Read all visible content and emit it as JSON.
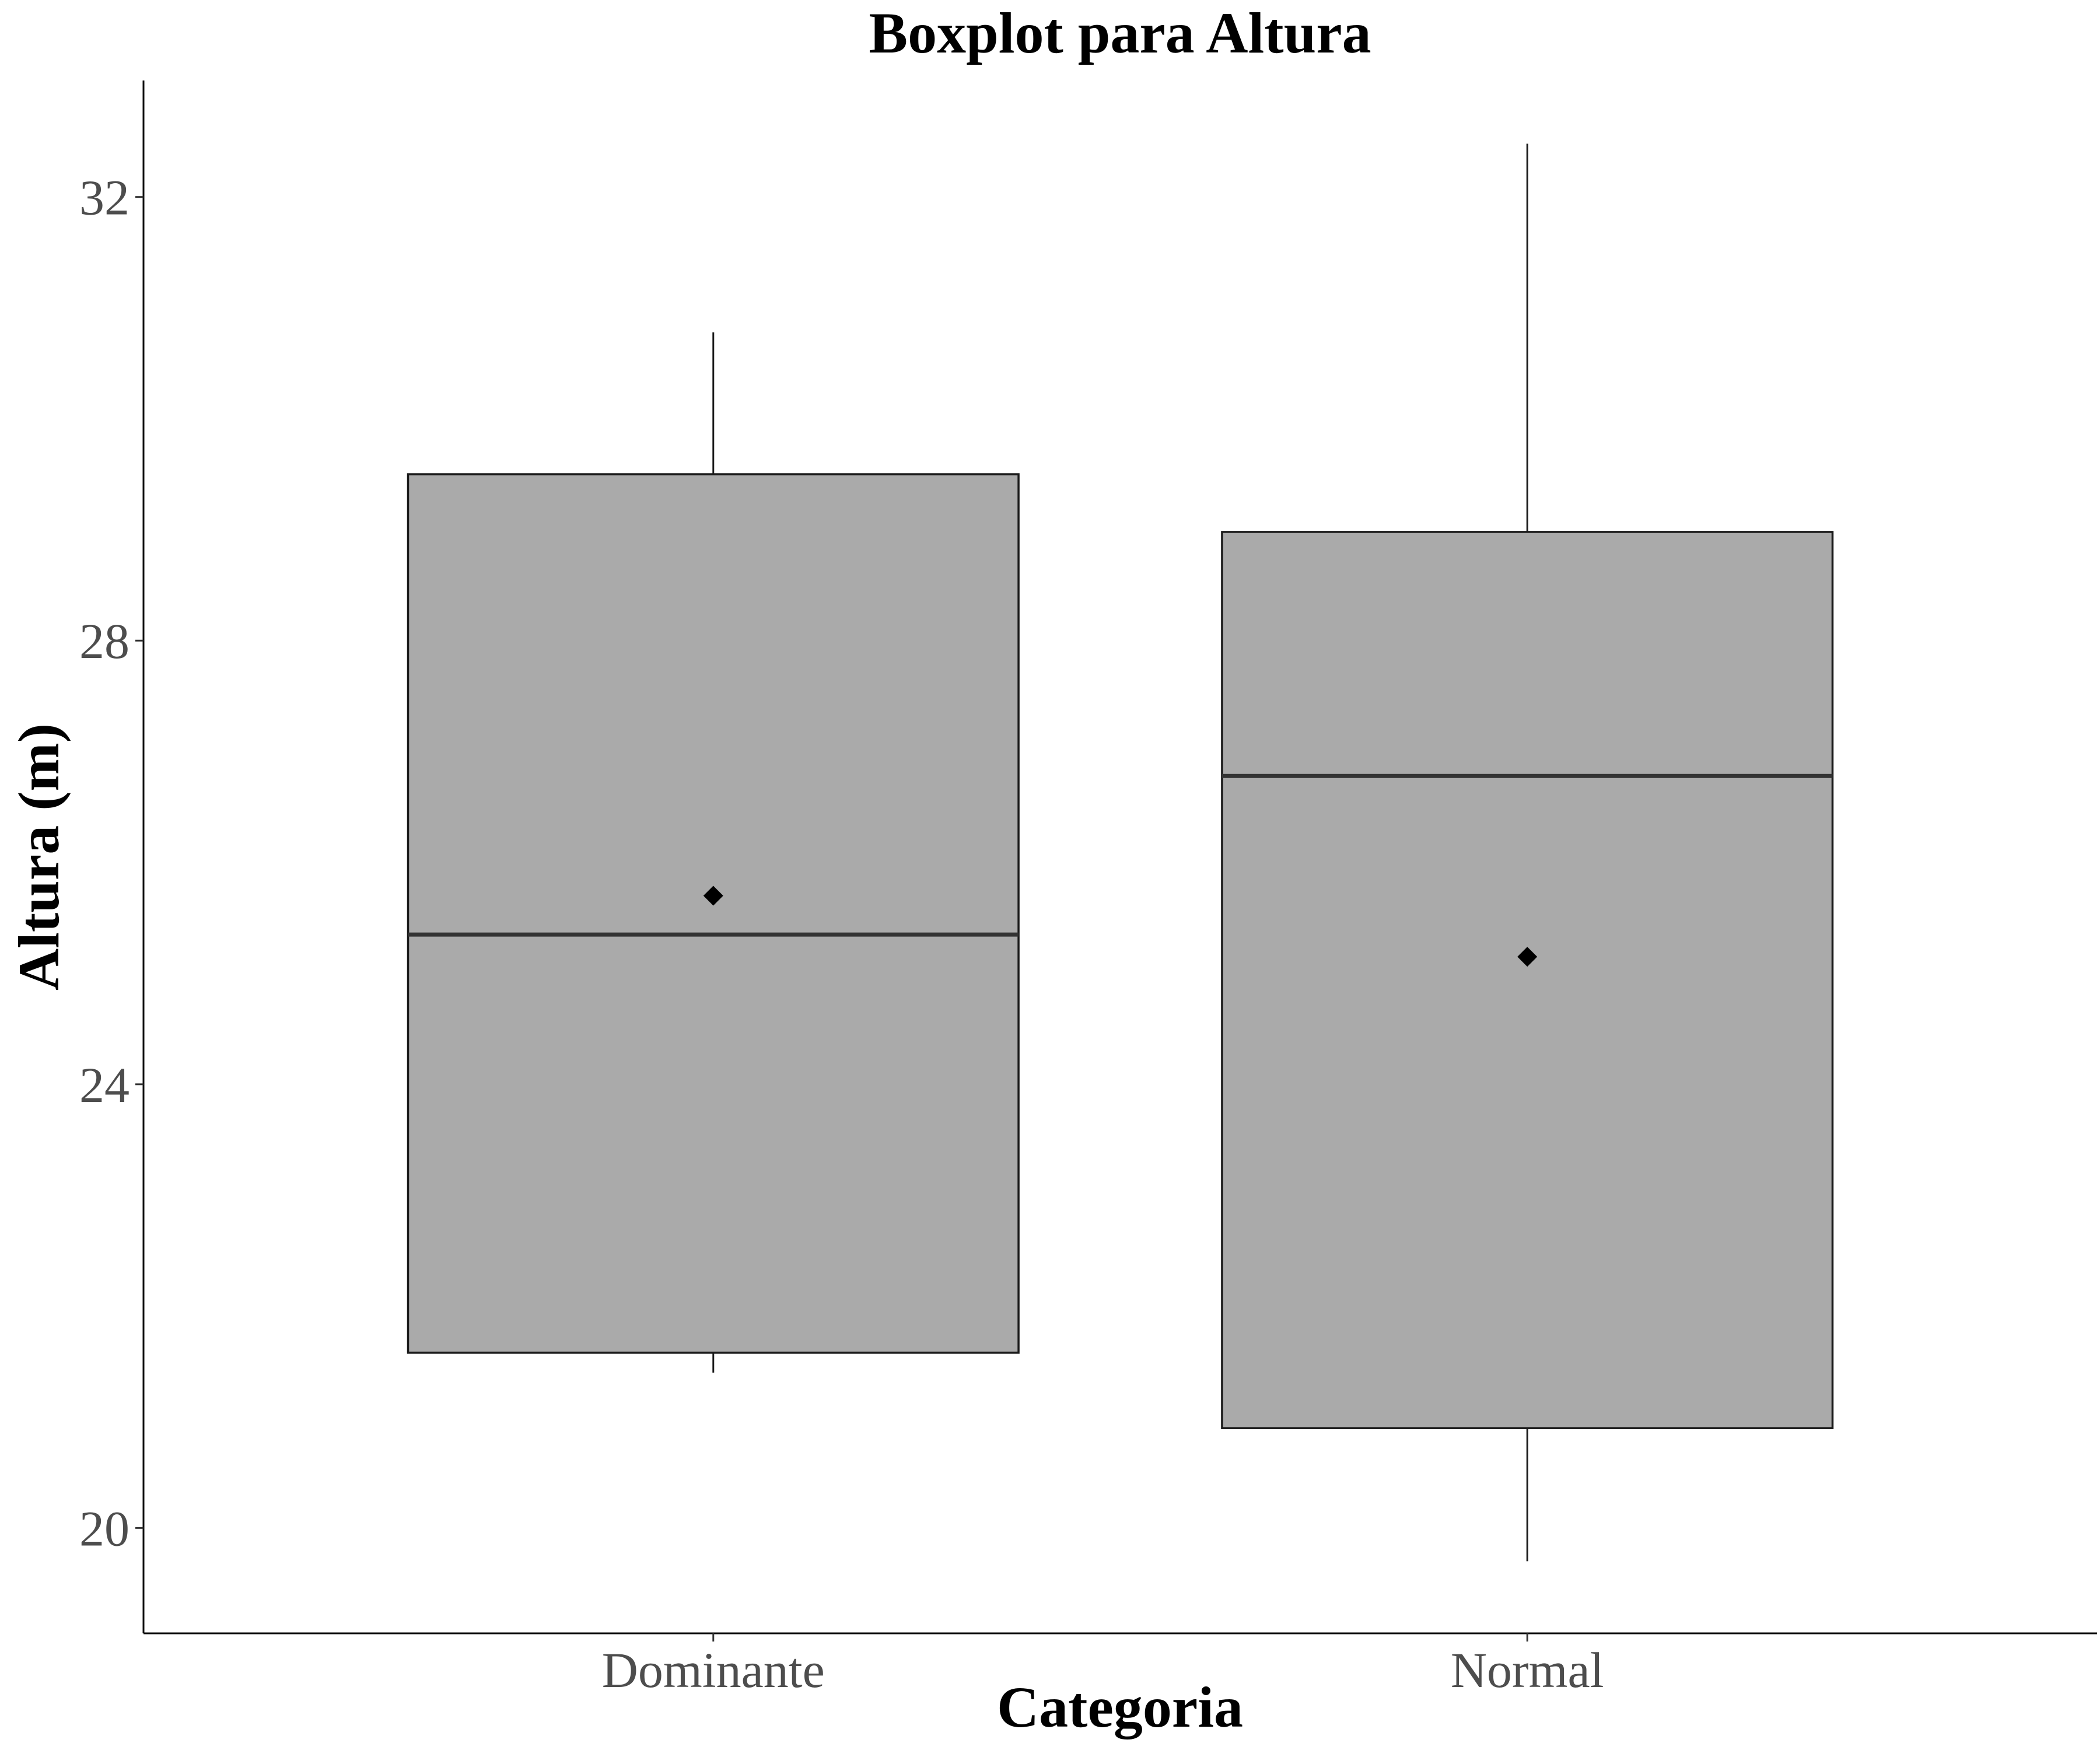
{
  "chart_data": {
    "type": "boxplot",
    "title": "Boxplot para Altura",
    "xlabel": "Categoria",
    "ylabel": "Altura (m)",
    "ylim": [
      19.05,
      33.05
    ],
    "yticks": [
      20,
      24,
      28,
      32
    ],
    "grid": false,
    "categories": [
      "Dominante",
      "Normal"
    ],
    "series": [
      {
        "category": "Dominante",
        "min": 21.4,
        "q1": 21.58,
        "median": 25.35,
        "q3": 29.5,
        "max": 30.78,
        "mean": 25.7
      },
      {
        "category": "Normal",
        "min": 19.7,
        "q1": 20.9,
        "median": 26.78,
        "q3": 28.98,
        "max": 32.48,
        "mean": 25.15
      }
    ],
    "colors": {
      "box_fill": "#aaaaaa",
      "box_stroke": "#1a1a1a",
      "median": "#333333",
      "mean": "#000000",
      "tick_label": "#4d4d4d"
    }
  }
}
